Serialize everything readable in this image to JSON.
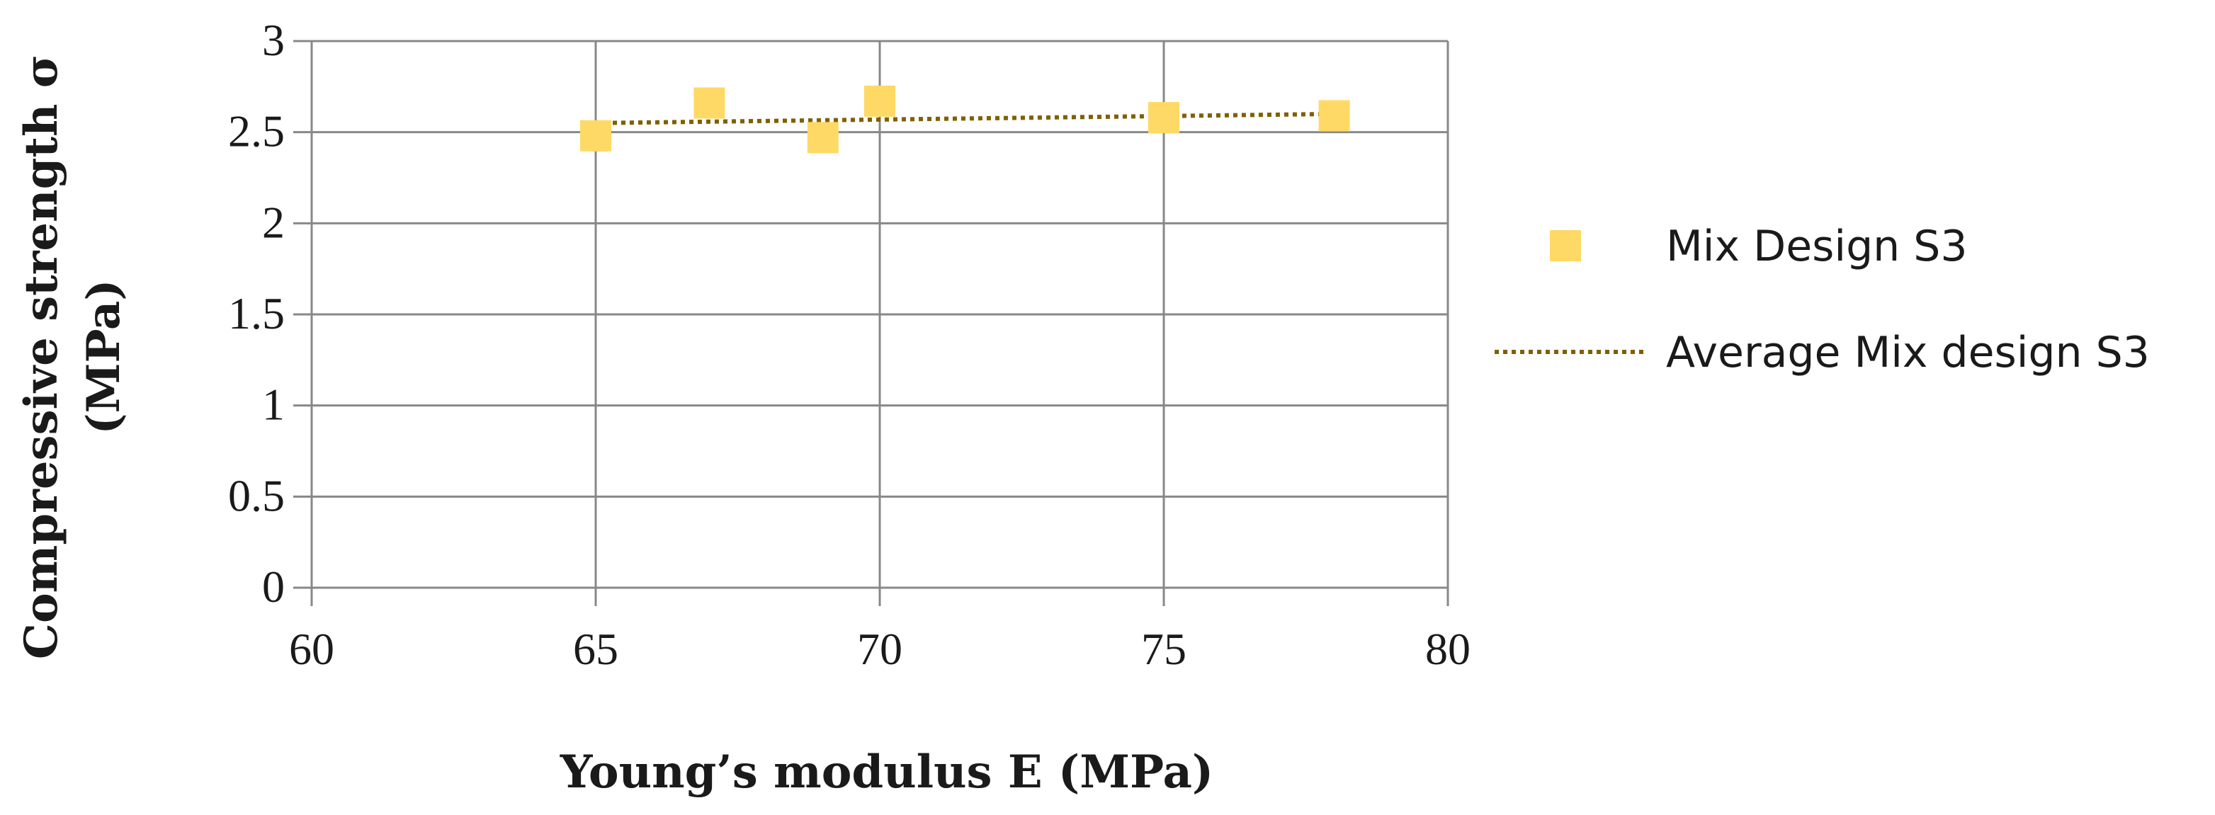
{
  "chart_data": {
    "type": "scatter",
    "title": "",
    "xlabel": "Young’s modulus E (MPa)",
    "ylabel_line1": "Compressive strength σ",
    "ylabel_line2": "(MPa)",
    "xlim": [
      60,
      80
    ],
    "ylim": [
      0,
      3
    ],
    "x_ticks": [
      60,
      65,
      70,
      75,
      80
    ],
    "y_ticks": [
      0,
      0.5,
      1,
      1.5,
      2,
      2.5,
      3
    ],
    "x_tick_labels": [
      "60",
      "65",
      "70",
      "75",
      "80"
    ],
    "y_tick_labels": [
      "0",
      "0.5",
      "1",
      "1.5",
      "2",
      "2.5",
      "3"
    ],
    "grid": true,
    "legend_position": "right",
    "series": [
      {
        "name": "Mix Design S3",
        "kind": "marker",
        "marker": "square",
        "color": "#FFD966",
        "points": [
          {
            "x": 65,
            "y": 2.48
          },
          {
            "x": 67,
            "y": 2.66
          },
          {
            "x": 69,
            "y": 2.47
          },
          {
            "x": 70,
            "y": 2.67
          },
          {
            "x": 75,
            "y": 2.58
          },
          {
            "x": 78,
            "y": 2.59
          }
        ]
      },
      {
        "name": "Average Mix design S3",
        "kind": "trendline",
        "style": "dotted",
        "color": "#7F6000",
        "points": [
          {
            "x": 65,
            "y": 2.55
          },
          {
            "x": 78,
            "y": 2.6
          }
        ]
      }
    ]
  },
  "colors": {
    "grid": "#888888",
    "axis": "#888888",
    "marker": "#FFD966",
    "trendline": "#7F6000"
  }
}
